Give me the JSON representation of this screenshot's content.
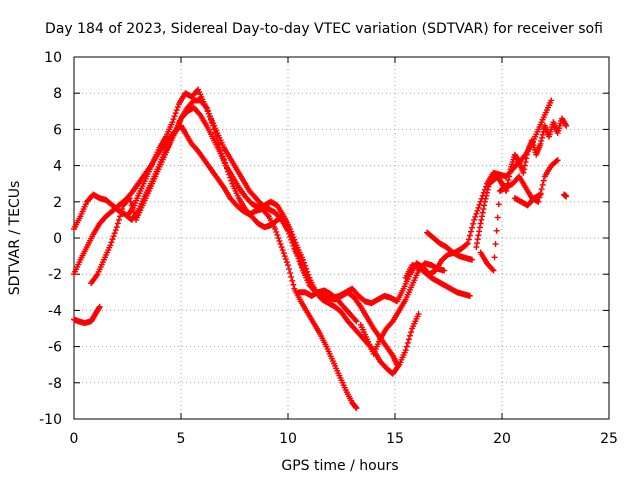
{
  "chart_data": {
    "type": "scatter",
    "title": "Day 184 of 2023, Sidereal Day-to-day VTEC variation (SDTVAR) for receiver sofi",
    "xlabel": "GPS time / hours",
    "ylabel": "SDTVAR / TECUs",
    "xlim": [
      0,
      25
    ],
    "ylim": [
      -10,
      10
    ],
    "xticks": [
      "0",
      "5",
      "10",
      "15",
      "20",
      "25"
    ],
    "yticks": [
      "-10",
      "-8",
      "-6",
      "-4",
      "-2",
      "0",
      "2",
      "4",
      "6",
      "8",
      "10"
    ],
    "grid": true,
    "marker": "+",
    "color": "#ff0000",
    "series": [
      {
        "x": [
          0.0,
          0.3,
          0.6,
          0.9,
          1.2,
          1.5,
          1.8,
          2.1,
          2.4,
          2.7,
          3.0,
          3.3,
          3.6,
          3.9,
          4.2,
          4.5,
          4.8,
          5.0,
          5.2,
          5.5,
          5.8,
          6.1,
          6.4,
          6.7,
          7.0,
          7.3,
          7.6,
          7.9,
          8.2,
          8.5,
          8.8,
          9.1,
          9.4,
          9.7,
          10.0,
          10.3,
          10.6,
          10.9,
          11.2,
          11.5,
          11.8,
          12.1,
          12.4,
          12.7,
          13.0,
          13.2
        ],
        "y": [
          -2.0,
          -1.2,
          -0.5,
          0.2,
          0.8,
          1.2,
          1.5,
          1.8,
          2.1,
          2.5,
          3.0,
          3.5,
          4.0,
          4.6,
          5.1,
          5.6,
          6.0,
          6.2,
          5.8,
          5.2,
          4.8,
          4.3,
          3.8,
          3.3,
          2.8,
          2.2,
          1.8,
          1.5,
          1.3,
          1.5,
          1.6,
          1.2,
          0.5,
          -0.5,
          -1.5,
          -2.8,
          -3.5,
          -4.1,
          -4.7,
          -5.3,
          -6.0,
          -6.8,
          -7.6,
          -8.4,
          -9.1,
          -9.4
        ]
      },
      {
        "x": [
          0.0,
          0.3,
          0.6,
          0.9,
          1.2,
          1.5,
          1.8,
          2.1,
          2.4,
          2.7,
          3.0,
          3.3,
          3.6,
          3.9,
          4.2,
          4.5,
          4.8,
          5.0,
          5.3,
          5.6,
          5.9,
          6.2,
          6.5,
          6.8,
          7.1,
          7.4,
          7.7,
          8.0,
          8.3,
          8.6,
          8.9,
          9.2,
          9.5,
          9.8,
          10.1,
          10.4,
          10.7,
          11.0,
          11.3,
          11.6,
          11.9,
          12.2,
          12.5,
          12.8,
          13.1,
          13.4,
          13.7,
          14.0,
          14.3,
          14.6,
          14.9,
          15.1
        ],
        "y": [
          0.5,
          1.2,
          2.0,
          2.4,
          2.2,
          2.1,
          1.8,
          1.5,
          1.3,
          1.0,
          1.5,
          2.3,
          3.0,
          3.8,
          4.6,
          5.3,
          6.0,
          6.6,
          7.0,
          7.2,
          6.8,
          6.2,
          5.5,
          4.8,
          4.0,
          3.4,
          2.8,
          2.3,
          1.9,
          1.7,
          1.8,
          2.0,
          1.8,
          1.2,
          0.3,
          -0.8,
          -1.8,
          -2.6,
          -3.0,
          -3.2,
          -3.3,
          -3.4,
          -3.2,
          -3.0,
          -3.3,
          -3.8,
          -4.4,
          -5.0,
          -5.5,
          -6.0,
          -6.5,
          -7.0
        ]
      },
      {
        "x": [
          0.0,
          0.2,
          0.5,
          0.8,
          1.0,
          1.2
        ],
        "y": [
          -4.5,
          -4.6,
          -4.7,
          -4.6,
          -4.2,
          -3.8
        ]
      },
      {
        "x": [
          0.8,
          1.1,
          1.4,
          1.7,
          2.0,
          2.3,
          2.6,
          2.9,
          3.2,
          3.5,
          3.8,
          4.1,
          4.4,
          4.7,
          5.0,
          5.3,
          5.6,
          5.9,
          6.2,
          6.5,
          6.8,
          7.1,
          7.4,
          7.7,
          8.0,
          8.3,
          8.6,
          8.9,
          9.2,
          9.5,
          9.8,
          10.1,
          10.4,
          10.7,
          11.0,
          11.3,
          11.6,
          11.9,
          12.2,
          12.5,
          12.8,
          13.1,
          13.4,
          13.7,
          14.0,
          14.3,
          14.6,
          14.9,
          15.2,
          15.5,
          15.8,
          16.1
        ],
        "y": [
          -2.5,
          -2.0,
          -1.2,
          -0.4,
          0.6,
          1.8,
          2.2,
          1.0,
          1.8,
          2.6,
          3.4,
          4.2,
          5.0,
          5.8,
          6.6,
          7.2,
          7.6,
          7.6,
          7.2,
          6.2,
          5.0,
          4.0,
          3.0,
          2.2,
          1.6,
          1.2,
          0.8,
          0.6,
          0.7,
          1.0,
          1.2,
          0.5,
          -0.4,
          -1.2,
          -2.2,
          -3.0,
          -3.4,
          -3.6,
          -3.8,
          -4.1,
          -4.6,
          -5.0,
          -5.4,
          -5.8,
          -6.2,
          -6.8,
          -7.2,
          -7.5,
          -7.0,
          -6.2,
          -5.0,
          -4.2
        ]
      },
      {
        "x": [
          2.5,
          2.8,
          3.1,
          3.4,
          3.7,
          4.0,
          4.3,
          4.6,
          4.9,
          5.2,
          5.5,
          5.8,
          6.1,
          6.4,
          6.7,
          7.0,
          7.3,
          7.6,
          7.9,
          8.2,
          8.5,
          8.8,
          9.1,
          9.4,
          9.7,
          10.0,
          10.3,
          10.6,
          10.9,
          11.2,
          11.5,
          11.8,
          12.1,
          12.4,
          12.7,
          13.0,
          13.3,
          13.6,
          13.9,
          14.2,
          14.5,
          14.8,
          15.1,
          15.4,
          15.7,
          16.0,
          16.3,
          16.6,
          16.9,
          17.2,
          17.5,
          17.8,
          18.1,
          18.4,
          18.7,
          19.0,
          19.3,
          19.6,
          19.9,
          20.2,
          20.5,
          20.8,
          21.1,
          21.4,
          21.7,
          22.0,
          22.3
        ],
        "y": [
          1.2,
          1.8,
          2.6,
          3.4,
          4.2,
          5.0,
          5.6,
          6.4,
          7.4,
          8.0,
          7.8,
          8.2,
          7.4,
          6.6,
          5.8,
          5.0,
          4.4,
          3.8,
          3.2,
          2.6,
          2.2,
          1.8,
          1.6,
          1.4,
          1.0,
          0.4,
          -0.6,
          -1.4,
          -2.2,
          -2.8,
          -3.2,
          -3.4,
          -3.3,
          -3.2,
          -3.0,
          -2.8,
          -3.2,
          -3.5,
          -3.6,
          -3.4,
          -3.2,
          -3.3,
          -3.5,
          -2.8,
          -2.0,
          -1.4,
          -1.6,
          -2.0,
          -1.8,
          -1.2,
          -0.9,
          -0.8,
          -0.6,
          -0.3,
          1.0,
          2.0,
          3.0,
          3.6,
          3.5,
          3.4,
          3.8,
          4.2,
          4.6,
          5.2,
          6.0,
          6.8,
          7.6
        ]
      },
      {
        "x": [
          10.5,
          10.8,
          11.1,
          11.4,
          11.7,
          12.0,
          12.3,
          12.6,
          12.9,
          13.2
        ],
        "y": [
          -3.0,
          -3.0,
          -3.2,
          -3.0,
          -2.9,
          -3.1,
          -3.4,
          -3.8,
          -4.2,
          -4.6
        ]
      },
      {
        "x": [
          13.4,
          13.7,
          14.0,
          14.3,
          14.6,
          14.9,
          15.2,
          15.5,
          15.8,
          16.1,
          16.4,
          16.7,
          17.0,
          17.3
        ],
        "y": [
          -4.8,
          -5.6,
          -6.4,
          -5.6,
          -5.0,
          -4.6,
          -4.0,
          -3.4,
          -2.6,
          -1.8,
          -1.4,
          -1.5,
          -1.7,
          -1.8
        ]
      },
      {
        "x": [
          15.5,
          15.8,
          16.1,
          16.4,
          16.7,
          17.0,
          17.3,
          17.6,
          17.9,
          18.2,
          18.5
        ],
        "y": [
          -2.2,
          -1.5,
          -1.6,
          -1.9,
          -2.2,
          -2.4,
          -2.6,
          -2.8,
          -3.0,
          -3.1,
          -3.2
        ]
      },
      {
        "x": [
          16.5,
          16.8,
          17.1,
          17.4,
          17.7,
          18.0,
          18.3,
          18.6
        ],
        "y": [
          0.3,
          0.0,
          -0.3,
          -0.5,
          -0.8,
          -1.0,
          -1.1,
          -1.2
        ]
      },
      {
        "x": [
          18.8,
          19.0,
          19.2,
          19.4,
          19.6,
          19.8,
          20.0,
          20.2,
          20.4,
          20.6,
          20.8,
          21.0,
          21.2,
          21.4,
          21.6,
          21.8,
          22.0,
          22.2,
          22.4,
          22.6,
          22.8,
          23.0
        ],
        "y": [
          -0.5,
          0.8,
          2.0,
          3.0,
          3.2,
          3.4,
          3.0,
          2.6,
          3.8,
          4.6,
          4.2,
          3.6,
          4.8,
          5.4,
          4.6,
          5.2,
          6.2,
          5.6,
          6.4,
          5.8,
          6.6,
          6.2
        ]
      },
      {
        "x": [
          19.0,
          19.3,
          19.6,
          19.9,
          20.2,
          20.5,
          20.8,
          21.1,
          21.4,
          21.7,
          22.0,
          22.3,
          22.6
        ],
        "y": [
          -0.8,
          -1.4,
          -1.8,
          2.6,
          2.8,
          3.0,
          3.4,
          2.8,
          2.2,
          2.0,
          3.4,
          4.0,
          4.3
        ]
      },
      {
        "x": [
          20.6,
          20.9,
          21.2,
          21.5,
          21.8
        ],
        "y": [
          2.2,
          2.0,
          1.8,
          2.2,
          2.4
        ]
      },
      {
        "x": [
          22.9,
          23.0
        ],
        "y": [
          2.4,
          2.3
        ]
      }
    ]
  }
}
